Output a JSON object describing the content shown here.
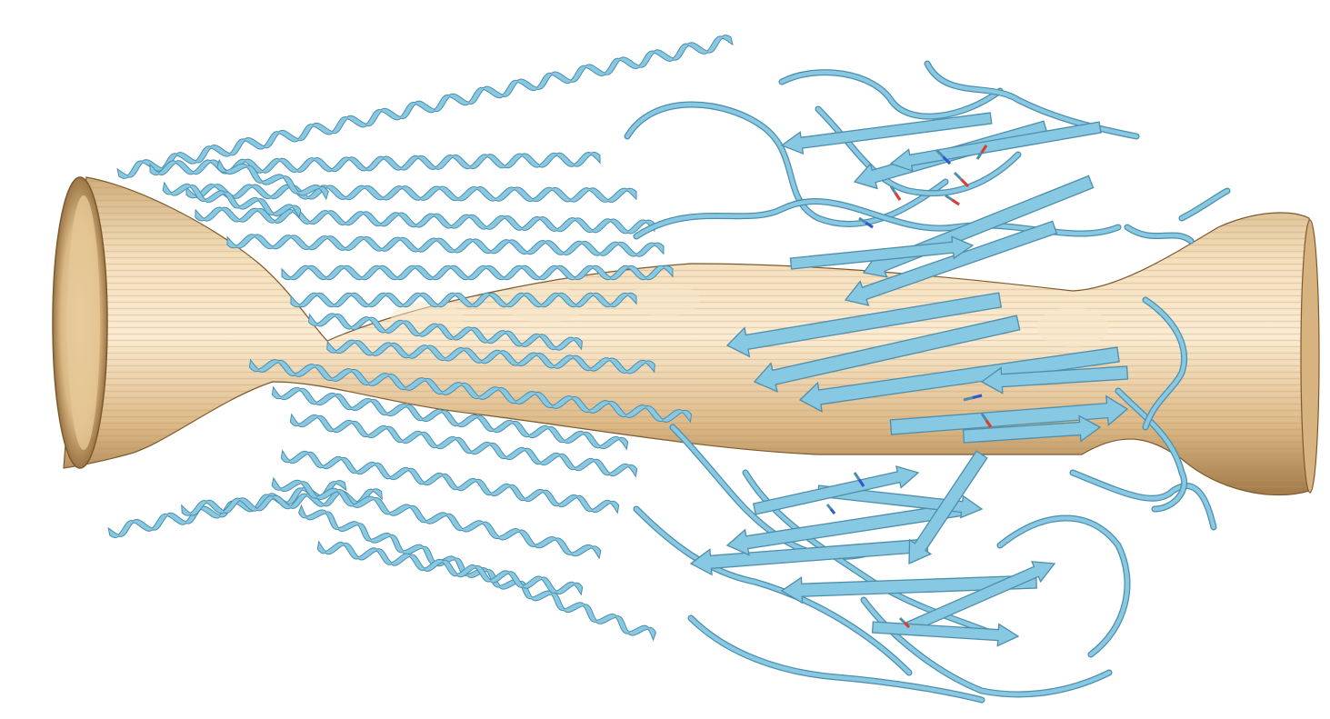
{
  "scene": {
    "background": "#ffffff",
    "colors": {
      "channel_surface": "#e8c99a",
      "channel_surface_light": "#f6e2c2",
      "channel_surface_dark": "#b88f5a",
      "ribbon": "#87c8e3",
      "ribbon_dark": "#4f8eaa",
      "ribbon_light": "#bfe6f4",
      "atom_oxygen": "#e23b2e",
      "atom_nitrogen": "#2f57d6"
    },
    "objects": [
      "pore-channel-surface-icon",
      "protein-helix-ribbon-icon",
      "beta-sheet-arrow-icon",
      "side-chain-stick-icon"
    ]
  }
}
